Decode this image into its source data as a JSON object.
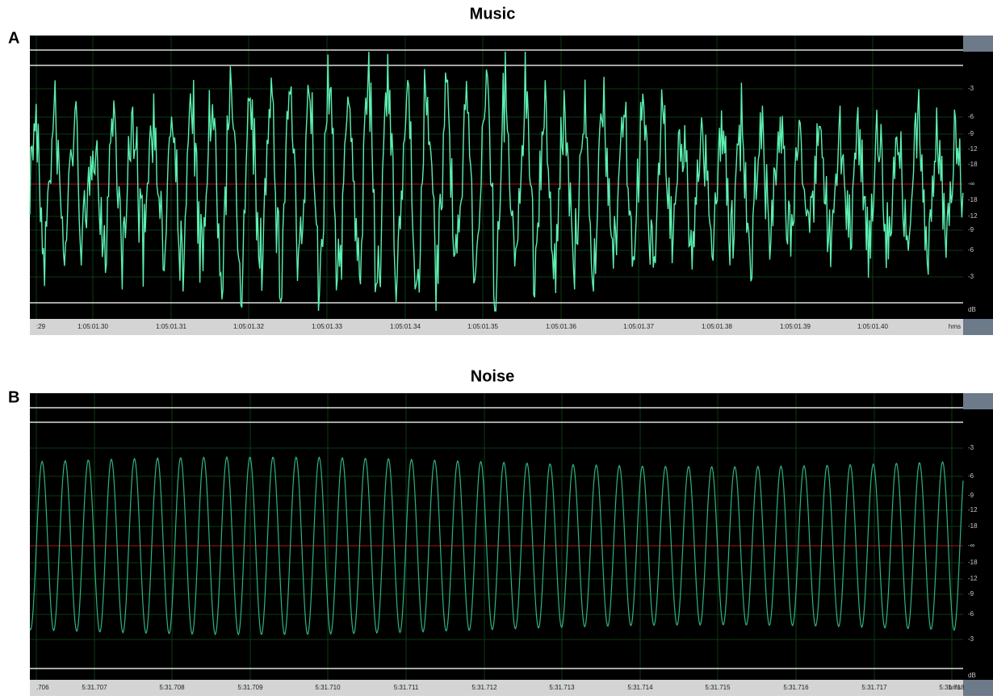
{
  "panels": [
    {
      "letter": "A",
      "title": "Music",
      "db_labels": [
        "-3",
        "-6",
        "-9",
        "-12",
        "-18",
        "-∞",
        "-18",
        "-12",
        "-9",
        "-6",
        "-3"
      ],
      "db_unit": "dB",
      "time_labels": [
        ":29",
        "1:05:01.30",
        "1:05:01.31",
        "1:05:01.32",
        "1:05:01.33",
        "1:05:01.34",
        "1:05:01.35",
        "1:05:01.36",
        "1:05:01.37",
        "1:05:01.38",
        "1:05:01.39",
        "1:05:01.40"
      ],
      "time_unit": "hms"
    },
    {
      "letter": "B",
      "title": "Noise",
      "db_labels": [
        "-3",
        "-6",
        "-9",
        "-12",
        "-18",
        "-∞",
        "-18",
        "-12",
        "-9",
        "-6",
        "-3"
      ],
      "db_unit": "dB",
      "time_labels": [
        ".706",
        "5:31.707",
        "5:31.708",
        "5:31.709",
        "5:31.710",
        "5:31.711",
        "5:31.712",
        "5:31.713",
        "5:31.714",
        "5:31.715",
        "5:31.716",
        "5:31.717",
        "5:31.718"
      ],
      "time_unit": "hms"
    }
  ]
}
